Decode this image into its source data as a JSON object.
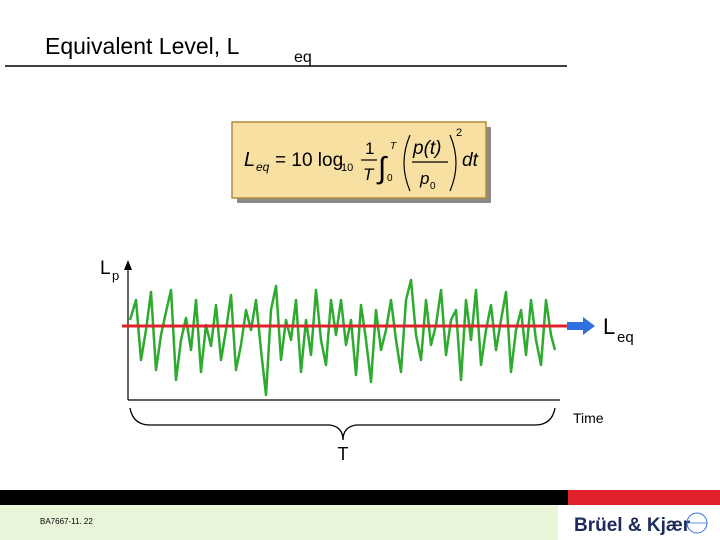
{
  "title": {
    "text": "Equivalent Level, L",
    "subscript": "eq"
  },
  "formula": {
    "lhs": "L",
    "lhs_sub": "eq",
    "equals": "= 10 log",
    "log_base": "10",
    "numerator": "1",
    "denominator": "T",
    "integral": "∫",
    "upper": "T",
    "lower": "0",
    "p_top": "p(t)",
    "p_bottom": "p",
    "p_bottom_sub": "0",
    "power": "2",
    "dt": "dt"
  },
  "axis": {
    "y_label": "L",
    "y_label_sub": "p",
    "x_label": "Time"
  },
  "level_label": {
    "text": "L",
    "subscript": "eq"
  },
  "period_label": "T",
  "footer": {
    "code": "BA7667-11. 22",
    "brand": "Brüel & Kjær"
  }
}
